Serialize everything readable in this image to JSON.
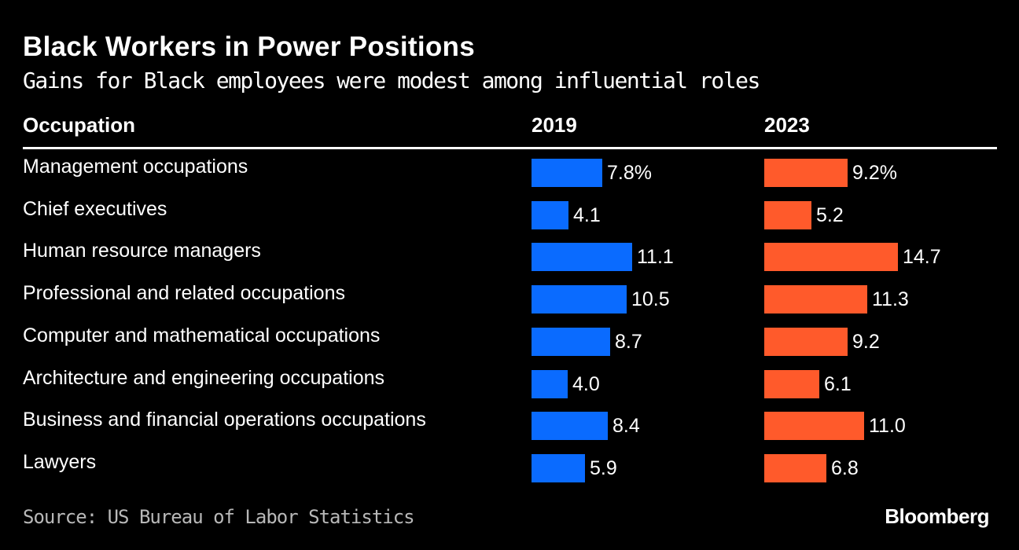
{
  "chart_data": {
    "type": "bar",
    "title": "Black Workers in Power Positions",
    "subtitle": "Gains for Black employees were modest among influential roles",
    "column_headers": {
      "category": "Occupation",
      "series_2019": "2019",
      "series_2023": "2023"
    },
    "categories": [
      "Management occupations",
      "Chief executives",
      "Human resource managers",
      "Professional and related occupations",
      "Computer and mathematical occupations",
      "Architecture and engineering occupations",
      "Business and financial operations occupations",
      "Lawyers"
    ],
    "series": [
      {
        "name": "2019",
        "color": "#0a6bff",
        "values": [
          7.8,
          4.1,
          11.1,
          10.5,
          8.7,
          4.0,
          8.4,
          5.9
        ],
        "labels": [
          "7.8%",
          "4.1",
          "11.1",
          "10.5",
          "8.7",
          "4.0",
          "8.4",
          "5.9"
        ]
      },
      {
        "name": "2023",
        "color": "#ff5a2b",
        "values": [
          9.2,
          5.2,
          14.7,
          11.3,
          9.2,
          6.1,
          11.0,
          6.8
        ],
        "labels": [
          "9.2%",
          "5.2",
          "14.7",
          "11.3",
          "9.2",
          "6.1",
          "11.0",
          "6.8"
        ]
      }
    ],
    "unit": "%",
    "source": "Source: US Bureau of Labor Statistics",
    "brand": "Bloomberg"
  }
}
